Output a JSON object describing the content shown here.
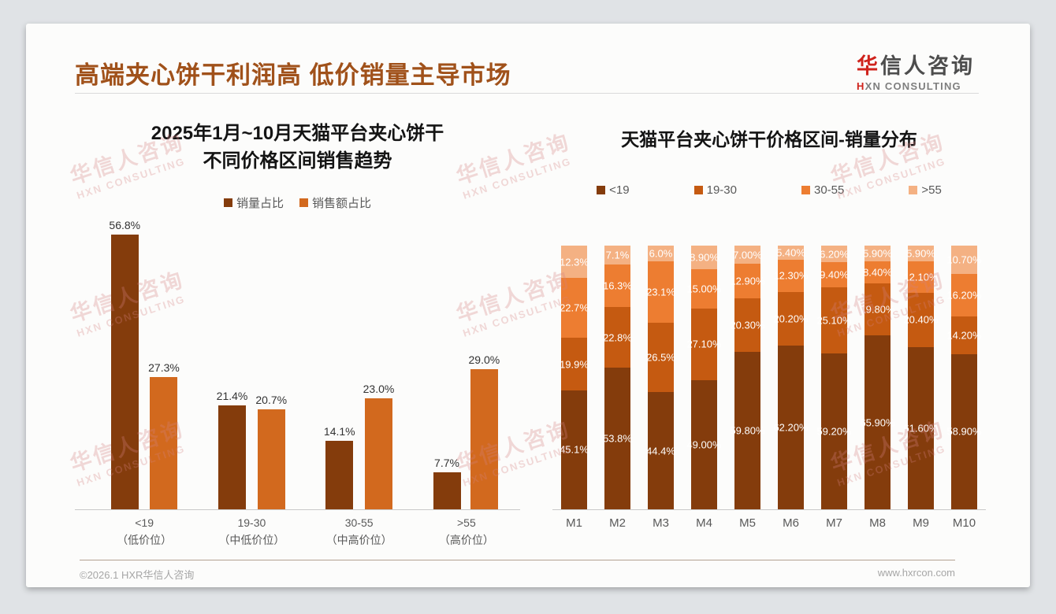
{
  "header": {
    "title": "高端夹心饼干利润高 低价销量主导市场",
    "logo": {
      "zh_red": "华",
      "zh_rest": "信人咨询",
      "en_red": "H",
      "en_rest": "XN CONSULTING"
    }
  },
  "watermark": {
    "line1": "华信人咨询",
    "line2": "HXN CONSULTING"
  },
  "footer": {
    "copyright": "©2026.1 HXR华信人咨询",
    "website": "www.hxrcon.com"
  },
  "chart_data": [
    {
      "type": "bar",
      "title_lines": [
        "2025年1月~10月天猫平台夹心饼干",
        "不同价格区间销售趋势"
      ],
      "categories": [
        "<19",
        "19-30",
        "30-55",
        ">55"
      ],
      "category_sublabels": [
        "（低价位）",
        "（中低价位）",
        "（中高价位）",
        "（高价位）"
      ],
      "series": [
        {
          "name": "销量占比",
          "color": "#843C0C",
          "values": [
            56.8,
            21.4,
            14.1,
            7.7
          ],
          "labels": [
            "56.8%",
            "21.4%",
            "14.1%",
            "7.7%"
          ]
        },
        {
          "name": "销售额占比",
          "color": "#D2691E",
          "values": [
            27.3,
            20.7,
            23.0,
            29.0
          ],
          "labels": [
            "27.3%",
            "20.7%",
            "23.0%",
            "29.0%"
          ]
        }
      ],
      "ylim": [
        0,
        60
      ],
      "grid": false,
      "legend_position": "top",
      "xlabel": "",
      "ylabel": ""
    },
    {
      "type": "stacked-bar-100",
      "title": "天猫平台夹心饼干价格区间-销量分布",
      "categories": [
        "M1",
        "M2",
        "M3",
        "M4",
        "M5",
        "M6",
        "M7",
        "M8",
        "M9",
        "M10"
      ],
      "series": [
        {
          "name": "<19",
          "color": "#843C0C",
          "values": [
            45.1,
            53.8,
            44.4,
            49.0,
            59.8,
            62.2,
            59.2,
            65.9,
            61.6,
            58.9
          ],
          "labels": [
            "45.1%",
            "53.8%",
            "44.4%",
            "49.00%",
            "59.80%",
            "62.20%",
            "59.20%",
            "65.90%",
            "61.60%",
            "58.90%"
          ]
        },
        {
          "name": "19-30",
          "color": "#C55A11",
          "values": [
            19.9,
            22.8,
            26.5,
            27.1,
            20.3,
            20.2,
            25.1,
            19.8,
            20.4,
            14.2
          ],
          "labels": [
            "19.9%",
            "22.8%",
            "26.5%",
            "27.10%",
            "20.30%",
            "20.20%",
            "25.10%",
            "19.80%",
            "20.40%",
            "14.20%"
          ]
        },
        {
          "name": "30-55",
          "color": "#ED7D31",
          "values": [
            22.7,
            16.3,
            23.1,
            15.0,
            12.9,
            12.3,
            9.4,
            8.4,
            12.1,
            16.2
          ],
          "labels": [
            "22.7%",
            "16.3%",
            "23.1%",
            "15.00%",
            "12.90%",
            "12.30%",
            "9.40%",
            "8.40%",
            "12.10%",
            "16.20%"
          ]
        },
        {
          "name": ">55",
          "color": "#F4B183",
          "values": [
            12.3,
            7.1,
            6.0,
            8.9,
            7.0,
            5.4,
            6.2,
            5.9,
            5.9,
            10.7
          ],
          "labels": [
            "12.3%",
            "7.1%",
            "6.0%",
            "8.90%",
            "7.00%",
            "5.40%",
            "6.20%",
            "5.90%",
            "5.90%",
            "10.70%"
          ]
        }
      ],
      "ylim": [
        0,
        100
      ],
      "grid": false,
      "legend_position": "top",
      "xlabel": "",
      "ylabel": ""
    }
  ]
}
